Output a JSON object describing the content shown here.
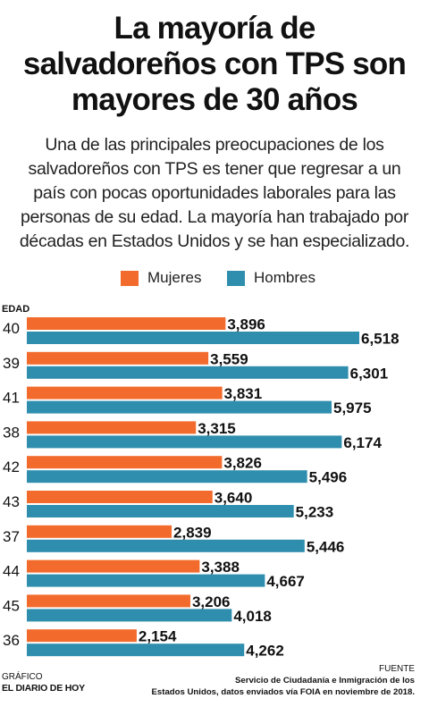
{
  "title_lines": [
    "La mayoría de",
    "salvadoreños con TPS son",
    "mayores de 30 años"
  ],
  "subtitle_lines": [
    "Una de las principales preocupaciones de los",
    "salvadoreños con TPS es tener que regresar a un",
    "país con pocas oportunidades laborales para las",
    "personas de su edad. La mayoría han trabajado por",
    "décadas en Estados Unidos y se han especializado."
  ],
  "legend": {
    "mujeres": "Mujeres",
    "hombres": "Hombres"
  },
  "colors": {
    "mujeres": "#f26b2c",
    "hombres": "#2f8eae"
  },
  "chart_data": {
    "type": "bar",
    "orientation": "horizontal",
    "axis_label": "EDAD",
    "categories": [
      "40",
      "39",
      "41",
      "38",
      "42",
      "43",
      "37",
      "44",
      "45",
      "36"
    ],
    "series": [
      {
        "name": "Mujeres",
        "values": [
          3896,
          3559,
          3831,
          3315,
          3826,
          3640,
          2839,
          3388,
          3206,
          2154
        ],
        "labels": [
          "3,896",
          "3,559",
          "3,831",
          "3,315",
          "3,826",
          "3,640",
          "2,839",
          "3,388",
          "3,206",
          "2,154"
        ]
      },
      {
        "name": "Hombres",
        "values": [
          6518,
          6301,
          5975,
          6174,
          5496,
          5233,
          5446,
          4667,
          4018,
          4262
        ],
        "labels": [
          "6,518",
          "6,301",
          "5,975",
          "6,174",
          "5,496",
          "5,233",
          "5,446",
          "4,667",
          "4,018",
          "4,262"
        ]
      }
    ],
    "legend_position": "top-center",
    "grid": false
  },
  "footer": {
    "credit_label": "GRÁFICO",
    "credit_brand": "EL DIARIO DE HOY",
    "source_label": "FUENTE",
    "source_lines": [
      "Servicio de Ciudadanía e Inmigración de los",
      "Estados Unidos, datos enviados vía FOIA en noviembre de 2018."
    ]
  }
}
